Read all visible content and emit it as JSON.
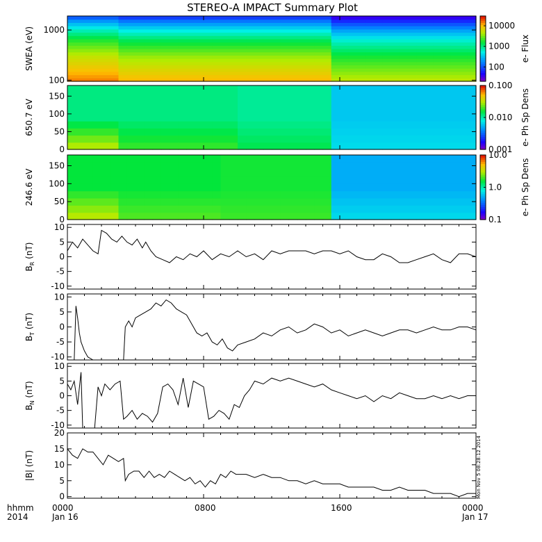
{
  "title": "STEREO-A IMPACT Summary Plot",
  "stamp": "Mon Nov  5 08:28:12 2014",
  "time_axis": {
    "row1": [
      "hhmm",
      "0000",
      "0800",
      "1600",
      "0000"
    ],
    "row2": [
      "2014",
      "Jan 16",
      "",
      "",
      "Jan 17"
    ],
    "ticks_hours": [
      0,
      8,
      16,
      24
    ]
  },
  "colors": {
    "line": "#000000",
    "frame": "#000000",
    "fill": "#00d200"
  },
  "chart_data": [
    {
      "type": "heatmap",
      "name": "swea",
      "ylabel": "SWEA (eV)",
      "yscale": "log",
      "ylim": [
        95,
        1900
      ],
      "yticks": [
        100,
        1000
      ],
      "ytick_labels": [
        "100",
        "1000"
      ],
      "colorbar": {
        "label": "e- Flux",
        "scale": "log",
        "range": [
          20,
          30000
        ],
        "ticks": [
          100,
          1000,
          10000
        ],
        "tick_labels": [
          "100",
          "1000",
          "10000"
        ]
      },
      "levels": [
        {
          "energy": 1900,
          "flux": 60
        },
        {
          "energy": 1500,
          "flux": 150
        },
        {
          "energy": 1000,
          "flux": 500
        },
        {
          "energy": 600,
          "flux": 1500
        },
        {
          "energy": 300,
          "flux": 4000
        },
        {
          "energy": 150,
          "flux": 8000
        },
        {
          "energy": 100,
          "flux": 12000
        }
      ]
    },
    {
      "type": "heatmap",
      "name": "pad650",
      "ylabel": "650.7 eV",
      "ylim": [
        0,
        180
      ],
      "yticks": [
        0,
        50,
        100,
        150
      ],
      "ytick_labels": [
        "0",
        "50",
        "100",
        "150"
      ],
      "colorbar": {
        "label": "e- Ph Sp Dens",
        "scale": "log",
        "range": [
          0.001,
          0.1
        ],
        "ticks": [
          0.001,
          0.01,
          0.1
        ],
        "tick_labels": [
          "0.001",
          "0.010",
          "0.100"
        ]
      },
      "regions": [
        {
          "from_hour": 0,
          "to_hour": 3,
          "low_pa": 0.035,
          "high_pa": 0.012
        },
        {
          "from_hour": 3,
          "to_hour": 10,
          "low_pa": 0.02,
          "high_pa": 0.012
        },
        {
          "from_hour": 10,
          "to_hour": 15.5,
          "low_pa": 0.015,
          "high_pa": 0.011
        },
        {
          "from_hour": 15.5,
          "to_hour": 24,
          "low_pa": 0.007,
          "high_pa": 0.006
        }
      ]
    },
    {
      "type": "heatmap",
      "name": "pad246",
      "ylabel": "246.6 eV",
      "ylim": [
        0,
        180
      ],
      "yticks": [
        0,
        50,
        100,
        150
      ],
      "ytick_labels": [
        "0",
        "50",
        "100",
        "150"
      ],
      "colorbar": {
        "label": "e- Ph Sp Dens",
        "scale": "log",
        "range": [
          0.1,
          10
        ],
        "ticks": [
          0.1,
          1,
          10
        ],
        "tick_labels": [
          "0.1",
          "1.0",
          "10.0"
        ]
      },
      "regions": [
        {
          "from_hour": 0,
          "to_hour": 3,
          "low_pa": 3.5,
          "high_pa": 1.6
        },
        {
          "from_hour": 3,
          "to_hour": 9,
          "low_pa": 2.2,
          "high_pa": 1.6
        },
        {
          "from_hour": 9,
          "to_hour": 15.5,
          "low_pa": 2.0,
          "high_pa": 1.7
        },
        {
          "from_hour": 15.5,
          "to_hour": 24,
          "low_pa": 0.7,
          "high_pa": 0.5
        }
      ]
    },
    {
      "type": "line",
      "name": "br",
      "ylabel": "B",
      "ylabel_sub": "R",
      "ylabel_unit": " (nT)",
      "ylim": [
        -11,
        11
      ],
      "yticks": [
        -10,
        -5,
        0,
        5,
        10
      ],
      "ytick_labels": [
        "-10",
        "-5",
        "0",
        "5",
        "10"
      ],
      "x_hours": [
        0,
        0.3,
        0.6,
        0.9,
        1.2,
        1.5,
        1.8,
        2.0,
        2.3,
        2.6,
        2.9,
        3.2,
        3.5,
        3.8,
        4.1,
        4.4,
        4.6,
        4.9,
        5.2,
        5.6,
        6.0,
        6.4,
        6.8,
        7.2,
        7.6,
        8.0,
        8.5,
        9.0,
        9.5,
        10.0,
        10.5,
        11.0,
        11.5,
        12.0,
        12.5,
        13.0,
        13.5,
        14.0,
        14.5,
        15.0,
        15.5,
        16.0,
        16.5,
        17.0,
        17.5,
        18.0,
        18.5,
        19.0,
        19.5,
        20.0,
        20.5,
        21.0,
        21.5,
        22.0,
        22.5,
        23.0,
        23.5,
        24.0
      ],
      "values": [
        2,
        5,
        3,
        6,
        4,
        2,
        1,
        9,
        8,
        6,
        5,
        7,
        5,
        4,
        6,
        3,
        5,
        2,
        0,
        -1,
        -2,
        0,
        -1,
        1,
        0,
        2,
        -1,
        1,
        0,
        2,
        0,
        1,
        -1,
        2,
        1,
        2,
        2,
        2,
        1,
        2,
        2,
        1,
        2,
        0,
        -1,
        -1,
        1,
        0,
        -2,
        -2,
        -1,
        0,
        1,
        -1,
        -2,
        1,
        1,
        0
      ],
      "markers_hours": [
        0,
        1,
        2,
        3,
        4,
        5,
        6,
        7,
        8,
        9,
        10,
        11,
        12,
        13,
        14,
        15,
        16,
        17,
        18,
        19,
        20,
        21,
        22,
        23,
        24
      ]
    },
    {
      "type": "line",
      "name": "bt",
      "ylabel": "B",
      "ylabel_sub": "T",
      "ylabel_unit": " (nT)",
      "ylim": [
        -11,
        11
      ],
      "yticks": [
        -10,
        -5,
        0,
        5,
        10
      ],
      "ytick_labels": [
        "-10",
        "-5",
        "0",
        "5",
        "10"
      ],
      "x_hours": [
        0,
        0.2,
        0.4,
        0.5,
        0.6,
        0.7,
        0.8,
        1.0,
        1.2,
        1.5,
        1.8,
        2.1,
        2.4,
        2.7,
        3.0,
        3.3,
        3.4,
        3.6,
        3.8,
        4.0,
        4.3,
        4.6,
        4.9,
        5.2,
        5.5,
        5.8,
        6.1,
        6.4,
        6.7,
        7.0,
        7.3,
        7.6,
        7.9,
        8.2,
        8.5,
        8.8,
        9.1,
        9.4,
        9.7,
        10.0,
        10.5,
        11.0,
        11.5,
        12.0,
        12.5,
        13.0,
        13.5,
        14.0,
        14.5,
        15.0,
        15.5,
        16.0,
        16.5,
        17.0,
        17.5,
        18.0,
        18.5,
        19.0,
        19.5,
        20.0,
        20.5,
        21.0,
        21.5,
        22.0,
        22.5,
        23.0,
        23.5,
        24.0
      ],
      "values": [
        -11,
        -11,
        -11,
        7,
        3,
        -2,
        -5,
        -8,
        -10,
        -11,
        -11,
        -11,
        -11,
        -11,
        -11,
        -11,
        0,
        2,
        0,
        3,
        4,
        5,
        6,
        8,
        7,
        9,
        8,
        6,
        5,
        4,
        1,
        -2,
        -3,
        -2,
        -5,
        -6,
        -4,
        -7,
        -8,
        -6,
        -5,
        -4,
        -2,
        -3,
        -1,
        0,
        -2,
        -1,
        1,
        0,
        -2,
        -1,
        -3,
        -2,
        -1,
        -2,
        -3,
        -2,
        -1,
        -1,
        -2,
        -1,
        0,
        -1,
        -1,
        0,
        0,
        -1
      ],
      "markers_hours": [
        0,
        1,
        2,
        3,
        4,
        5,
        6,
        7,
        8,
        9,
        10,
        11,
        12,
        13,
        14,
        15,
        16,
        17,
        18,
        19,
        20,
        21,
        22,
        23,
        24
      ]
    },
    {
      "type": "line",
      "name": "bn",
      "ylabel": "B",
      "ylabel_sub": "N",
      "ylabel_unit": " (nT)",
      "ylim": [
        -11,
        11
      ],
      "yticks": [
        -10,
        -5,
        0,
        5,
        10
      ],
      "ytick_labels": [
        "-10",
        "-5",
        "0",
        "5",
        "10"
      ],
      "x_hours": [
        0,
        0.2,
        0.4,
        0.6,
        0.8,
        0.9,
        1.0,
        1.2,
        1.4,
        1.6,
        1.8,
        2.0,
        2.2,
        2.5,
        2.8,
        3.1,
        3.3,
        3.5,
        3.8,
        4.1,
        4.4,
        4.7,
        5.0,
        5.3,
        5.6,
        5.9,
        6.2,
        6.5,
        6.8,
        7.1,
        7.4,
        7.7,
        8.0,
        8.3,
        8.6,
        8.9,
        9.2,
        9.5,
        9.8,
        10.1,
        10.4,
        10.7,
        11.0,
        11.5,
        12.0,
        12.5,
        13.0,
        13.5,
        14.0,
        14.5,
        15.0,
        15.5,
        16.0,
        16.5,
        17.0,
        17.5,
        18.0,
        18.5,
        19.0,
        19.5,
        20.0,
        20.5,
        21.0,
        21.5,
        22.0,
        22.5,
        23.0,
        23.5,
        24.0
      ],
      "values": [
        4,
        2,
        5,
        -3,
        8,
        -11,
        -11,
        -11,
        -11,
        -11,
        3,
        0,
        4,
        2,
        4,
        5,
        -8,
        -7,
        -5,
        -8,
        -6,
        -7,
        -9,
        -6,
        3,
        4,
        2,
        -3,
        6,
        -4,
        5,
        4,
        3,
        -8,
        -7,
        -5,
        -6,
        -8,
        -3,
        -4,
        0,
        2,
        5,
        4,
        6,
        5,
        6,
        5,
        4,
        3,
        4,
        2,
        1,
        0,
        -1,
        0,
        -2,
        0,
        -1,
        1,
        0,
        -1,
        -1,
        0,
        -1,
        0,
        -1,
        0,
        0
      ],
      "markers_hours": [
        0,
        1,
        2,
        3,
        4,
        5,
        6,
        7,
        8,
        9,
        10,
        11,
        12,
        13,
        14,
        15,
        16,
        17,
        18,
        19,
        20,
        21,
        22,
        23,
        24
      ]
    },
    {
      "type": "line",
      "name": "bmag",
      "ylabel": "|B| (nT)",
      "ylim": [
        -0.5,
        20
      ],
      "yticks": [
        0,
        5,
        10,
        15,
        20
      ],
      "ytick_labels": [
        "0",
        "5",
        "10",
        "15",
        "20"
      ],
      "x_hours": [
        0,
        0.3,
        0.6,
        0.9,
        1.2,
        1.5,
        1.8,
        2.1,
        2.4,
        2.7,
        3.0,
        3.3,
        3.4,
        3.6,
        3.9,
        4.2,
        4.5,
        4.8,
        5.1,
        5.4,
        5.7,
        6.0,
        6.3,
        6.6,
        6.9,
        7.2,
        7.5,
        7.8,
        8.1,
        8.4,
        8.7,
        9.0,
        9.3,
        9.6,
        9.9,
        10.5,
        11.0,
        11.5,
        12.0,
        12.5,
        13.0,
        13.5,
        14.0,
        14.5,
        15.0,
        15.5,
        16.0,
        16.5,
        17.0,
        17.5,
        18.0,
        18.5,
        19.0,
        19.5,
        20.0,
        20.5,
        21.0,
        21.5,
        22.0,
        22.5,
        23.0,
        23.5,
        24.0
      ],
      "values": [
        15,
        13,
        12,
        15,
        14,
        14,
        12,
        10,
        13,
        12,
        11,
        12,
        5,
        7,
        8,
        8,
        6,
        8,
        6,
        7,
        6,
        8,
        7,
        6,
        5,
        6,
        4,
        5,
        3,
        5,
        4,
        7,
        6,
        8,
        7,
        7,
        6,
        7,
        6,
        6,
        5,
        5,
        4,
        5,
        4,
        4,
        4,
        3,
        3,
        3,
        3,
        2,
        2,
        3,
        2,
        2,
        2,
        1,
        1,
        1,
        0,
        1,
        1
      ],
      "markers_hours": [
        0,
        1,
        2,
        3,
        4,
        5,
        6,
        7,
        8,
        9,
        10,
        11,
        12,
        13,
        14,
        15,
        16,
        17,
        18,
        19,
        20,
        21,
        22,
        23,
        24
      ]
    }
  ]
}
